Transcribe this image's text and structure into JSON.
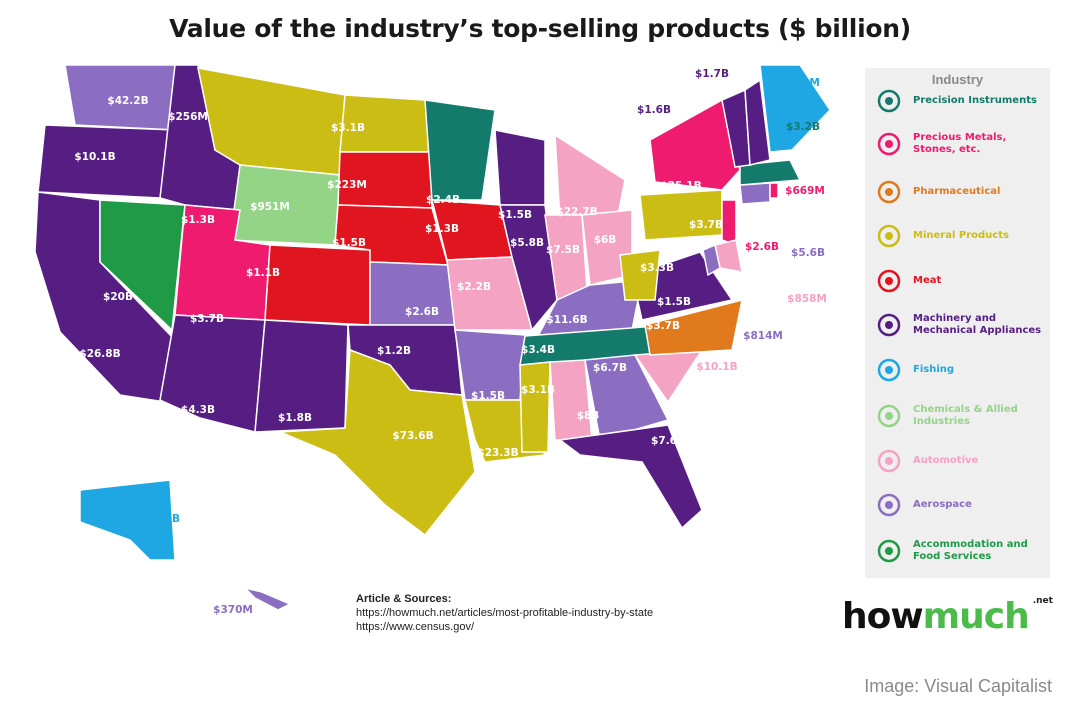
{
  "title": "Value of the industry’s top-selling products ($ billion)",
  "colors": {
    "precision": "#137a6c",
    "precious": "#ee1b6f",
    "pharma": "#e07a1c",
    "mineral": "#cbbd14",
    "meat": "#e1151f",
    "machinery": "#561e82",
    "fishing": "#1ea7e2",
    "chemicals": "#93d487",
    "automotive": "#f4a3c3",
    "aerospace": "#8b6dc2",
    "accommodation": "#1f9a47"
  },
  "legend": {
    "title": "Industry",
    "items": [
      {
        "key": "precision",
        "label": "Precision Instruments",
        "icon": "scissors-tools-icon"
      },
      {
        "key": "precious",
        "label": "Precious Metals, Stones, etc.",
        "icon": "diamond-icon"
      },
      {
        "key": "pharma",
        "label": "Pharmaceutical",
        "icon": "pill-icon"
      },
      {
        "key": "mineral",
        "label": "Mineral Products",
        "icon": "mineral-pile-icon"
      },
      {
        "key": "meat",
        "label": "Meat",
        "icon": "steak-icon"
      },
      {
        "key": "machinery",
        "label": "Machinery and Mechanical Appliances",
        "icon": "gear-icon"
      },
      {
        "key": "fishing",
        "label": "Fishing",
        "icon": "fish-icon"
      },
      {
        "key": "chemicals",
        "label": "Chemicals & Allied Industries",
        "icon": "flask-icon"
      },
      {
        "key": "automotive",
        "label": "Automotive",
        "icon": "car-icon"
      },
      {
        "key": "aerospace",
        "label": "Aerospace",
        "icon": "rocket-icon"
      },
      {
        "key": "accommodation",
        "label": "Accommodation and Food Services",
        "icon": "bed-icon"
      }
    ]
  },
  "states": [
    {
      "value": "$42.2B",
      "industry": "aerospace"
    },
    {
      "value": "$10.1B",
      "industry": "machinery"
    },
    {
      "value": "$26.8B",
      "industry": "machinery"
    },
    {
      "value": "$1.3B",
      "industry": "machinery"
    },
    {
      "value": "$20B",
      "industry": "accommodation"
    },
    {
      "value": "$256M",
      "industry": "mineral"
    },
    {
      "value": "$951M",
      "industry": "chemicals"
    },
    {
      "value": "$3.7B",
      "industry": "precious"
    },
    {
      "value": "$1.1B",
      "industry": "meat"
    },
    {
      "value": "$4.3B",
      "industry": "machinery"
    },
    {
      "value": "$1.8B",
      "industry": "machinery"
    },
    {
      "value": "$3.1B",
      "industry": "mineral"
    },
    {
      "value": "$223M",
      "industry": "meat"
    },
    {
      "value": "$1.5B",
      "industry": "meat"
    },
    {
      "value": "$2.6B",
      "industry": "aerospace"
    },
    {
      "value": "$1.2B",
      "industry": "machinery"
    },
    {
      "value": "$73.6B",
      "industry": "mineral"
    },
    {
      "value": "$2.4B",
      "industry": "precision"
    },
    {
      "value": "$1.3B",
      "industry": "meat"
    },
    {
      "value": "$2.2B",
      "industry": "automotive"
    },
    {
      "value": "$1.5B",
      "industry": "aerospace"
    },
    {
      "value": "$23.3B",
      "industry": "mineral"
    },
    {
      "value": "$1.5B",
      "industry": "machinery"
    },
    {
      "value": "$5.8B",
      "industry": "machinery"
    },
    {
      "value": "$22.7B",
      "industry": "automotive"
    },
    {
      "value": "$7.5B",
      "industry": "automotive"
    },
    {
      "value": "$6B",
      "industry": "automotive"
    },
    {
      "value": "$11.6B",
      "industry": "aerospace"
    },
    {
      "value": "$3.4B",
      "industry": "precision"
    },
    {
      "value": "$3.1B",
      "industry": "mineral"
    },
    {
      "value": "$8B",
      "industry": "automotive"
    },
    {
      "value": "$6.7B",
      "industry": "aerospace"
    },
    {
      "value": "$7.6B",
      "industry": "machinery"
    },
    {
      "value": "$10.1B",
      "industry": "automotive"
    },
    {
      "value": "$3.7B",
      "industry": "pharma"
    },
    {
      "value": "$1.5B",
      "industry": "machinery"
    },
    {
      "value": "$3.3B",
      "industry": "mineral"
    },
    {
      "value": "$3.7B",
      "industry": "mineral"
    },
    {
      "value": "$25.1B",
      "industry": "precious"
    },
    {
      "value": "$2.6B",
      "industry": "precious"
    },
    {
      "value": "$5.6B",
      "industry": "aerospace"
    },
    {
      "value": "$858M",
      "industry": "automotive"
    },
    {
      "value": "$814M",
      "industry": "aerospace"
    },
    {
      "value": "$669M",
      "industry": "precious"
    },
    {
      "value": "$3.2B",
      "industry": "precision"
    },
    {
      "value": "$431M",
      "industry": "fishing"
    },
    {
      "value": "$1.7B",
      "industry": "machinery"
    },
    {
      "value": "$1.6B",
      "industry": "machinery"
    },
    {
      "value": "$2.4B",
      "industry": "fishing"
    },
    {
      "value": "$370M",
      "industry": "aerospace"
    }
  ],
  "sources": {
    "heading": "Article & Sources:",
    "lines": [
      "https://howmuch.net/articles/most-profitable-industry-by-state",
      "https://www.census.gov/"
    ]
  },
  "logo": {
    "part1": "how",
    "part2": "much",
    "suffix": ".net"
  },
  "credit": "Image: Visual Capitalist"
}
